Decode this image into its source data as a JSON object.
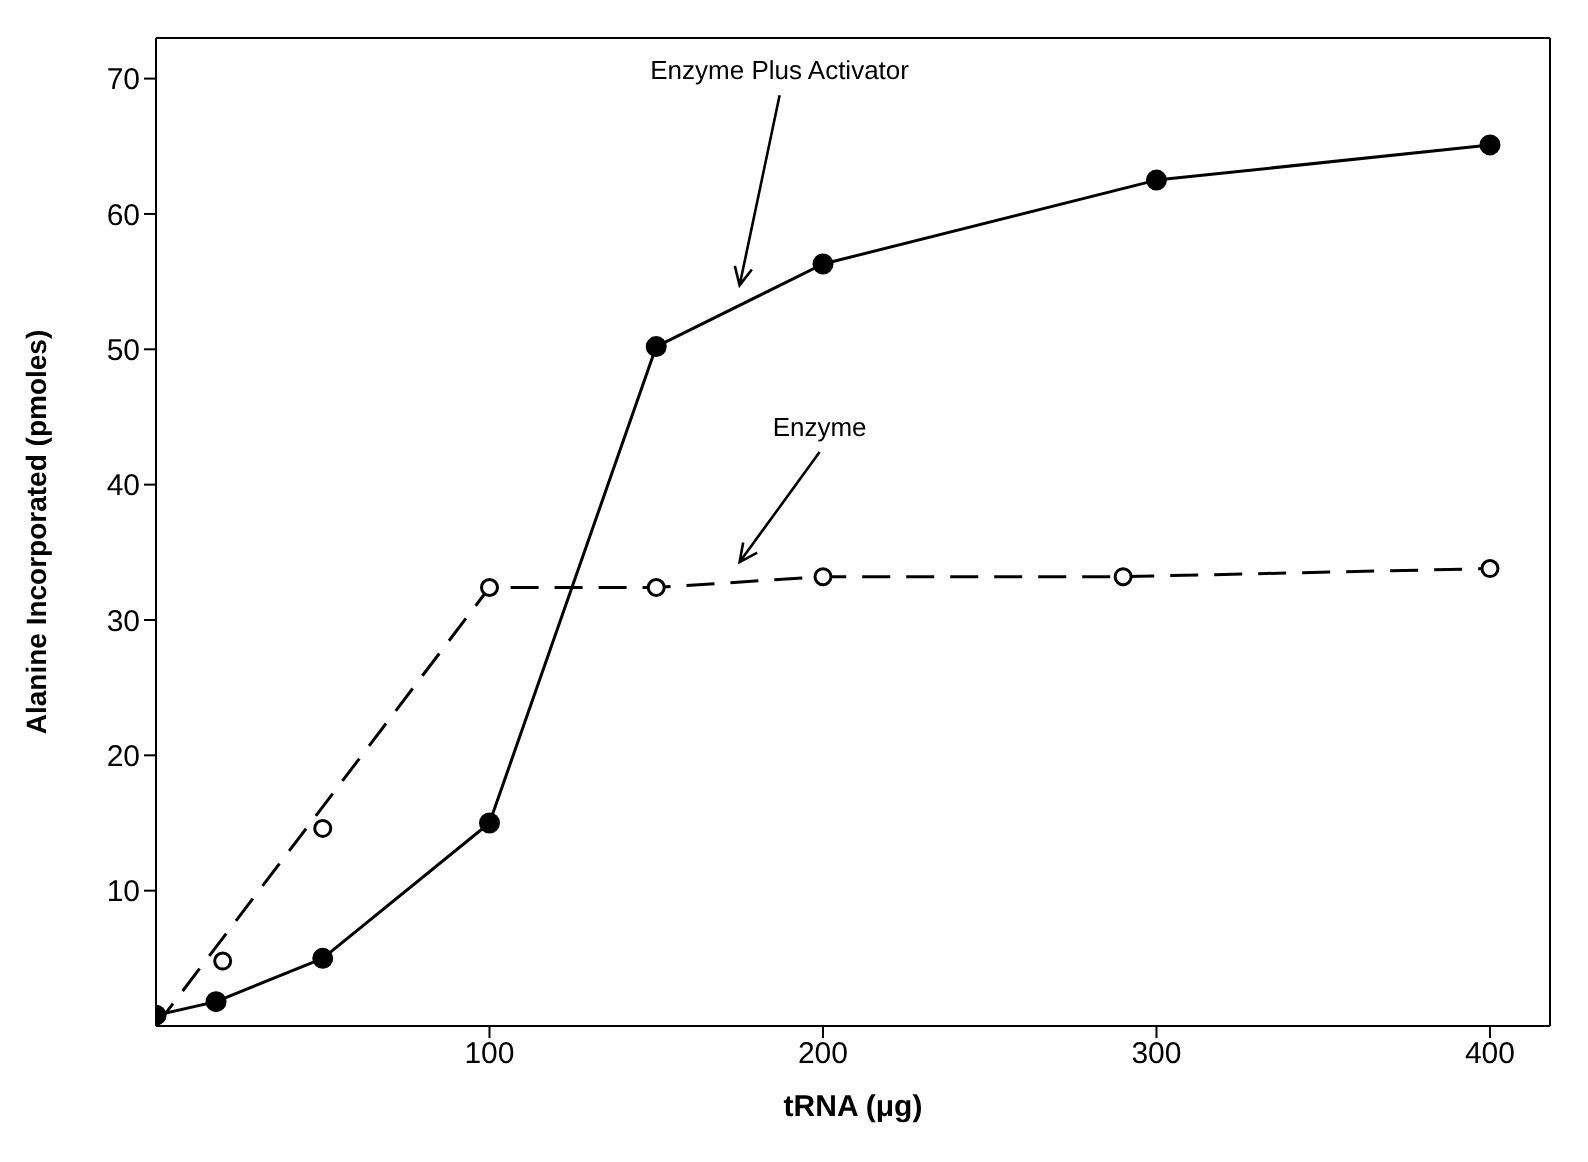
{
  "chart_data": {
    "type": "line",
    "xlabel": "tRNA (μg)",
    "ylabel": "Alanine Incorporated (pmoles)",
    "xlim": [
      0,
      418
    ],
    "ylim": [
      0,
      73
    ],
    "xticks": [
      100,
      200,
      300,
      400
    ],
    "yticks": [
      10,
      20,
      30,
      40,
      50,
      60,
      70
    ],
    "marker": "circle",
    "series": [
      {
        "name": "Enzyme Plus Activator",
        "color": "#000000",
        "line_style": "solid",
        "x": [
          0,
          18,
          50,
          100,
          150,
          200,
          300,
          400
        ],
        "values": [
          0.8,
          1.8,
          5,
          15,
          50.2,
          56.3,
          62.5,
          65.1
        ]
      },
      {
        "type": "scatter",
        "color": "#000000",
        "x": [
          20,
          50,
          100,
          150,
          200,
          290,
          400
        ],
        "values": [
          4.8,
          14.6,
          32.4,
          32.4,
          33.2,
          33.2,
          33.8
        ]
      },
      {
        "name": "Enzyme",
        "color": "#000000",
        "line_style": "dashed",
        "marker": "none",
        "x": [
          0,
          100,
          150,
          200,
          290,
          400
        ],
        "values": [
          0,
          32.4,
          32.4,
          33.2,
          33.2,
          33.8
        ]
      }
    ]
  }
}
